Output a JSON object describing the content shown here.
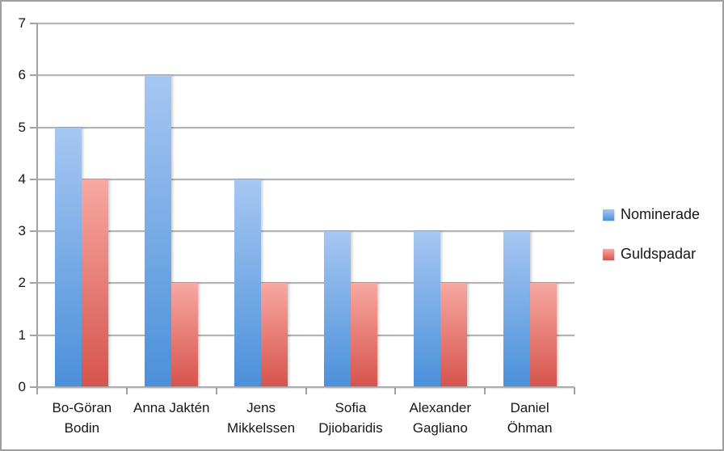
{
  "chart_data": {
    "type": "bar",
    "title": "",
    "xlabel": "",
    "ylabel": "",
    "categories": [
      "Bo-Göran Bodin",
      "Anna Jaktén",
      "Jens Mikkelssen",
      "Sofia Djiobaridis",
      "Alexander Gagliano",
      "Daniel Öhman"
    ],
    "category_label_lines": [
      [
        "Bo-Göran",
        "Bodin"
      ],
      [
        "Anna Jaktén"
      ],
      [
        "Jens",
        "Mikkelssen"
      ],
      [
        "Sofia",
        "Djiobaridis"
      ],
      [
        "Alexander",
        "Gagliano"
      ],
      [
        "Daniel",
        "Öhman"
      ]
    ],
    "series": [
      {
        "name": "Nominerade",
        "values": [
          5,
          6,
          4,
          3,
          3,
          3
        ],
        "gradient_top": "#A7C7F2",
        "gradient_bottom": "#4A90DA"
      },
      {
        "name": "Guldspadar",
        "values": [
          4,
          2,
          2,
          2,
          2,
          2
        ],
        "gradient_top": "#F8A8A2",
        "gradient_bottom": "#D5544C"
      }
    ],
    "ylim": [
      0,
      7
    ],
    "yticks": [
      0,
      1,
      2,
      3,
      4,
      5,
      6,
      7
    ],
    "grid": true,
    "legend_position": "right"
  },
  "colors": {
    "background": "#FFFFFF",
    "frame_border": "#9E9E9E",
    "gridline": "#A2A2A2",
    "axis": "#A2A2A2",
    "text": "#161616"
  }
}
